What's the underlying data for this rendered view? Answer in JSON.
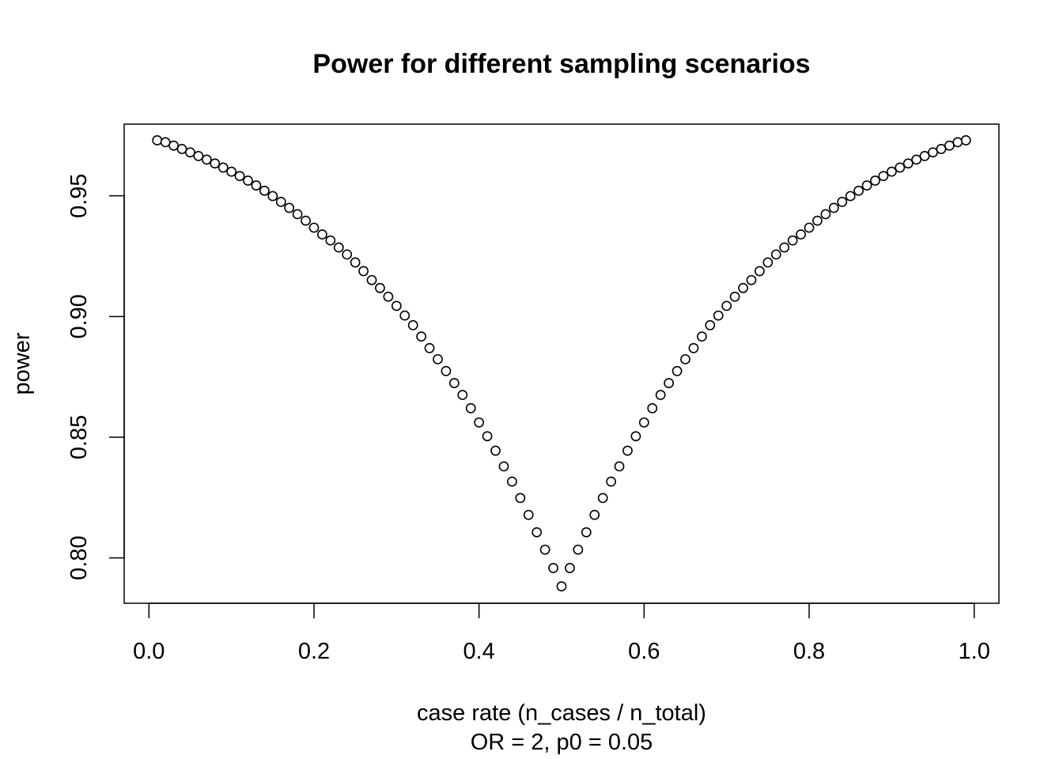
{
  "chart_data": {
    "type": "scatter",
    "title": "Power for different sampling scenarios",
    "xlabel": "case rate (n_cases / n_total)",
    "subtitle": "OR = 2, p0 = 0.05",
    "ylabel": "power",
    "xlim": [
      -0.03,
      1.03
    ],
    "ylim": [
      0.7812,
      0.9797
    ],
    "x_ticks": [
      0.0,
      0.2,
      0.4,
      0.6,
      0.8,
      1.0
    ],
    "x_tick_labels": [
      "0.0",
      "0.2",
      "0.4",
      "0.6",
      "0.8",
      "1.0"
    ],
    "y_ticks": [
      0.8,
      0.85,
      0.9,
      0.95
    ],
    "y_tick_labels": [
      "0.80",
      "0.85",
      "0.90",
      "0.95"
    ],
    "grid": false,
    "legend": "none",
    "marker": "open-circle",
    "x": [
      0.01,
      0.02,
      0.03,
      0.04,
      0.05,
      0.06,
      0.07,
      0.08,
      0.09,
      0.1,
      0.11,
      0.12,
      0.13,
      0.14,
      0.15,
      0.16,
      0.17,
      0.18,
      0.19,
      0.2,
      0.21,
      0.22,
      0.23,
      0.24,
      0.25,
      0.26,
      0.27,
      0.28,
      0.29,
      0.3,
      0.31,
      0.32,
      0.33,
      0.34,
      0.35,
      0.36,
      0.37,
      0.38,
      0.39,
      0.4,
      0.41,
      0.42,
      0.43,
      0.44,
      0.45,
      0.46,
      0.47,
      0.48,
      0.49,
      0.5,
      0.51,
      0.52,
      0.53,
      0.54,
      0.55,
      0.56,
      0.57,
      0.58,
      0.59,
      0.6,
      0.61,
      0.62,
      0.63,
      0.64,
      0.65,
      0.66,
      0.67,
      0.68,
      0.69,
      0.7,
      0.71,
      0.72,
      0.73,
      0.74,
      0.75,
      0.76,
      0.77,
      0.78,
      0.79,
      0.8,
      0.81,
      0.82,
      0.83,
      0.84,
      0.85,
      0.86,
      0.87,
      0.88,
      0.89,
      0.9,
      0.91,
      0.92,
      0.93,
      0.94,
      0.95,
      0.96,
      0.97,
      0.98,
      0.99
    ],
    "y": [
      0.973,
      0.9722,
      0.9708,
      0.9694,
      0.968,
      0.9665,
      0.965,
      0.9634,
      0.9617,
      0.96,
      0.9582,
      0.9563,
      0.9543,
      0.9521,
      0.9499,
      0.9475,
      0.945,
      0.9424,
      0.9397,
      0.9368,
      0.934,
      0.9315,
      0.9286,
      0.9257,
      0.9224,
      0.9188,
      0.9151,
      0.9118,
      0.9082,
      0.9044,
      0.9004,
      0.8964,
      0.8917,
      0.8869,
      0.8823,
      0.8774,
      0.8724,
      0.8675,
      0.862,
      0.8561,
      0.8504,
      0.8444,
      0.8379,
      0.8316,
      0.8248,
      0.8178,
      0.8106,
      0.8034,
      0.7958,
      0.7882,
      0.7958,
      0.8034,
      0.8106,
      0.8178,
      0.8248,
      0.8316,
      0.8379,
      0.8444,
      0.8504,
      0.8561,
      0.862,
      0.8675,
      0.8724,
      0.8774,
      0.8823,
      0.8869,
      0.8917,
      0.8964,
      0.9004,
      0.9044,
      0.9082,
      0.9118,
      0.9151,
      0.9188,
      0.9224,
      0.9257,
      0.9286,
      0.9315,
      0.934,
      0.9368,
      0.9397,
      0.9424,
      0.945,
      0.9475,
      0.9499,
      0.9521,
      0.9543,
      0.9563,
      0.9582,
      0.96,
      0.9617,
      0.9634,
      0.965,
      0.9665,
      0.968,
      0.9694,
      0.9708,
      0.9722,
      0.973
    ]
  }
}
